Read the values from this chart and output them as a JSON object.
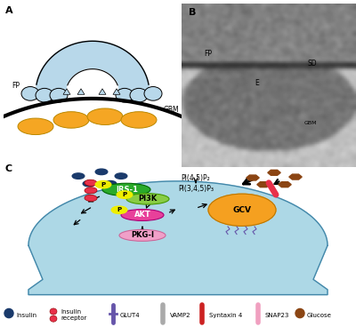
{
  "panel_A_label": "A",
  "panel_B_label": "B",
  "panel_C_label": "C",
  "light_blue": "#B8D8EA",
  "cell_blue": "#ADD8E6",
  "orange_ellipse": "#F5A623",
  "dark_blue_dots": "#1A3A6B",
  "brown_dots": "#8B4513",
  "red_receptor": "#E8304A",
  "green_IRS1": "#2AAA2A",
  "light_green_PI3K": "#88CC44",
  "yellow_P": "#EEEE00",
  "pink_AKT": "#E8409A",
  "light_pink_PKG": "#F0A0C8",
  "orange_GCV": "#F5A020",
  "bg_white": "#FFFFFF",
  "cell_edge": "#4488AA"
}
